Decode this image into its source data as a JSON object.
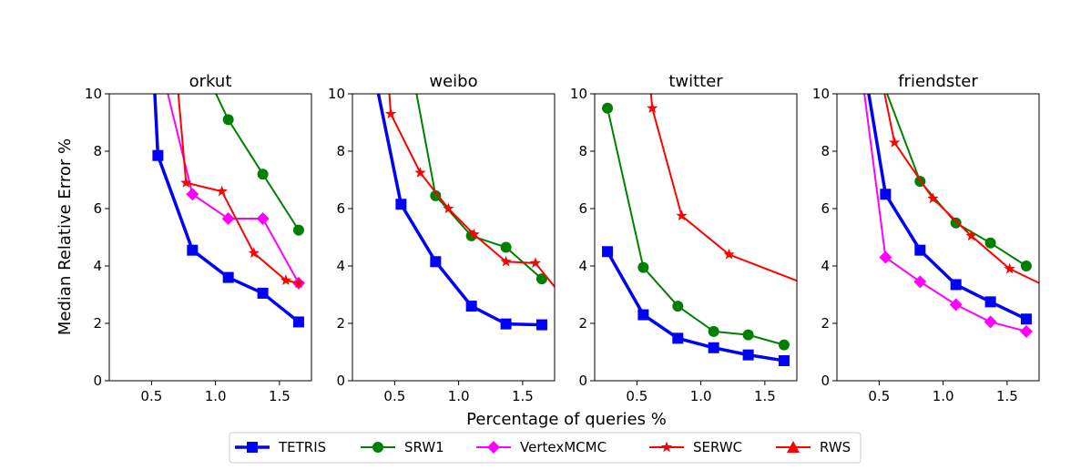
{
  "figure": {
    "xlabel": "Percentage of queries %",
    "ylabel": "Median Relative Error %"
  },
  "chart_data": [
    {
      "type": "line",
      "title": "orkut",
      "xlim": [
        0.17,
        1.75
      ],
      "ylim": [
        0,
        10
      ],
      "xticks": [
        0.5,
        1.0,
        1.5
      ],
      "yticks": [
        0,
        2,
        4,
        6,
        8,
        10
      ],
      "series": [
        {
          "name": "TETRIS",
          "x": [
            0.52,
            0.55,
            0.82,
            1.1,
            1.37,
            1.65
          ],
          "y": [
            10.5,
            7.85,
            4.55,
            3.6,
            3.05,
            2.05
          ]
        },
        {
          "name": "SRW1",
          "x": [
            0.95,
            1.1,
            1.37,
            1.65
          ],
          "y": [
            10.5,
            9.1,
            7.2,
            5.25
          ]
        },
        {
          "name": "VertexMCMC",
          "x": [
            0.6,
            0.82,
            1.1,
            1.37,
            1.65
          ],
          "y": [
            10.5,
            6.5,
            5.65,
            5.65,
            3.4
          ]
        },
        {
          "name": "SERWC",
          "x": [
            0.7,
            0.77,
            1.05,
            1.3,
            1.55,
            1.65
          ],
          "y": [
            10.5,
            6.9,
            6.6,
            4.45,
            3.5,
            3.4
          ]
        },
        {
          "name": "RWS",
          "x": [],
          "y": []
        }
      ]
    },
    {
      "type": "line",
      "title": "weibo",
      "xlim": [
        0.17,
        1.75
      ],
      "ylim": [
        0,
        10
      ],
      "xticks": [
        0.5,
        1.0,
        1.5
      ],
      "yticks": [
        0,
        2,
        4,
        6,
        8,
        10
      ],
      "series": [
        {
          "name": "TETRIS",
          "x": [
            0.35,
            0.55,
            0.82,
            1.1,
            1.37,
            1.65
          ],
          "y": [
            10.5,
            6.15,
            4.15,
            2.6,
            1.98,
            1.95
          ]
        },
        {
          "name": "SRW1",
          "x": [
            0.65,
            0.82,
            1.1,
            1.37,
            1.65
          ],
          "y": [
            10.5,
            6.45,
            5.05,
            4.65,
            3.55
          ]
        },
        {
          "name": "SERWC",
          "x": [
            0.45,
            0.47,
            0.7,
            0.92,
            1.12,
            1.37,
            1.6,
            1.8
          ],
          "y": [
            10.5,
            9.3,
            7.25,
            6.0,
            5.1,
            4.15,
            4.1,
            3.0
          ]
        },
        {
          "name": "VertexMCMC",
          "x": [],
          "y": []
        },
        {
          "name": "RWS",
          "x": [],
          "y": []
        }
      ]
    },
    {
      "type": "line",
      "title": "twitter",
      "xlim": [
        0.17,
        1.75
      ],
      "ylim": [
        0,
        10
      ],
      "xticks": [
        0.5,
        1.0,
        1.5
      ],
      "yticks": [
        0,
        2,
        4,
        6,
        8,
        10
      ],
      "series": [
        {
          "name": "TETRIS",
          "x": [
            0.27,
            0.55,
            0.82,
            1.1,
            1.37,
            1.65
          ],
          "y": [
            4.5,
            2.3,
            1.48,
            1.15,
            0.9,
            0.7
          ]
        },
        {
          "name": "SRW1",
          "x": [
            0.27,
            0.55,
            0.82,
            1.1,
            1.37,
            1.65
          ],
          "y": [
            9.5,
            3.95,
            2.6,
            1.72,
            1.6,
            1.25
          ]
        },
        {
          "name": "SERWC",
          "x": [
            0.6,
            0.62,
            0.85,
            1.22,
            1.8
          ],
          "y": [
            10.5,
            9.5,
            5.75,
            4.4,
            3.4
          ]
        },
        {
          "name": "VertexMCMC",
          "x": [],
          "y": []
        },
        {
          "name": "RWS",
          "x": [],
          "y": []
        }
      ]
    },
    {
      "type": "line",
      "title": "friendster",
      "xlim": [
        0.17,
        1.75
      ],
      "ylim": [
        0,
        10
      ],
      "xticks": [
        0.5,
        1.0,
        1.5
      ],
      "yticks": [
        0,
        2,
        4,
        6,
        8,
        10
      ],
      "series": [
        {
          "name": "TETRIS",
          "x": [
            0.4,
            0.55,
            0.82,
            1.1,
            1.37,
            1.65
          ],
          "y": [
            10.5,
            6.5,
            4.55,
            3.35,
            2.75,
            2.15
          ]
        },
        {
          "name": "SRW1",
          "x": [
            0.52,
            0.82,
            1.1,
            1.37,
            1.65
          ],
          "y": [
            10.5,
            6.95,
            5.5,
            4.8,
            4.0
          ]
        },
        {
          "name": "VertexMCMC",
          "x": [
            0.37,
            0.55,
            0.82,
            1.1,
            1.37,
            1.65
          ],
          "y": [
            10.5,
            4.3,
            3.45,
            2.65,
            2.05,
            1.72
          ]
        },
        {
          "name": "SERWC",
          "x": [
            0.52,
            0.62,
            0.92,
            1.22,
            1.52,
            1.8
          ],
          "y": [
            10.5,
            8.3,
            6.35,
            5.05,
            3.9,
            3.3
          ]
        },
        {
          "name": "RWS",
          "x": [],
          "y": []
        }
      ]
    }
  ],
  "legend": {
    "position": "bottom-center",
    "entries": [
      {
        "label": "TETRIS",
        "color": "#0000ff",
        "marker": "square",
        "lw": 3.5
      },
      {
        "label": "SRW1",
        "color": "#008000",
        "marker": "circle",
        "lw": 2
      },
      {
        "label": "VertexMCMC",
        "color": "#ff00ff",
        "marker": "diamond",
        "lw": 2
      },
      {
        "label": "SERWC",
        "color": "#ff0000",
        "marker": "star",
        "lw": 2
      },
      {
        "label": "RWS",
        "color": "#ff0000",
        "marker": "triangle",
        "lw": 2
      }
    ]
  }
}
